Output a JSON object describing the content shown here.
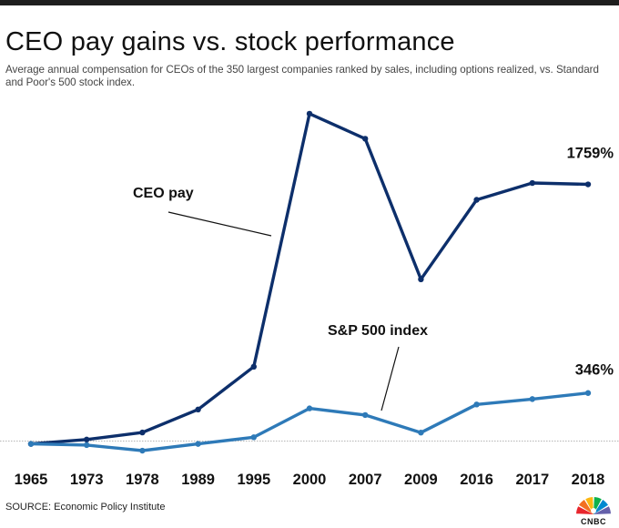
{
  "title": "CEO pay gains vs. stock performance",
  "subtitle": "Average annual compensation for CEOs of the 350 largest companies ranked by sales, including options realized, vs. Standard and Poor's 500 stock index.",
  "source": "SOURCE: Economic Policy Institute",
  "logo": {
    "text": "CNBC",
    "feather_colors": [
      "#e8262d",
      "#f37021",
      "#fcb711",
      "#0db14b",
      "#0089d0",
      "#6460aa"
    ]
  },
  "chart_data": {
    "type": "line",
    "title": "CEO pay gains vs. stock performance",
    "xlabel": "",
    "ylabel": "",
    "categories": [
      "1965",
      "1973",
      "1978",
      "1989",
      "1995",
      "2000",
      "2007",
      "2009",
      "2016",
      "2017",
      "2018"
    ],
    "ylim": [
      -200,
      6000
    ],
    "grid": false,
    "baseline": 0,
    "series": [
      {
        "name": "CEO pay",
        "color": "#0d2f6b",
        "values": [
          0,
          77,
          202,
          610,
          1369,
          5856,
          5412,
          2919,
          4329,
          4627,
          4603
        ],
        "end_label": "1759%"
      },
      {
        "name": "S&P 500 index",
        "color": "#2e7ab8",
        "values": [
          0,
          -21,
          -120,
          0,
          118,
          630,
          512,
          200,
          699,
          795,
          902
        ],
        "end_label": "346%"
      }
    ]
  }
}
